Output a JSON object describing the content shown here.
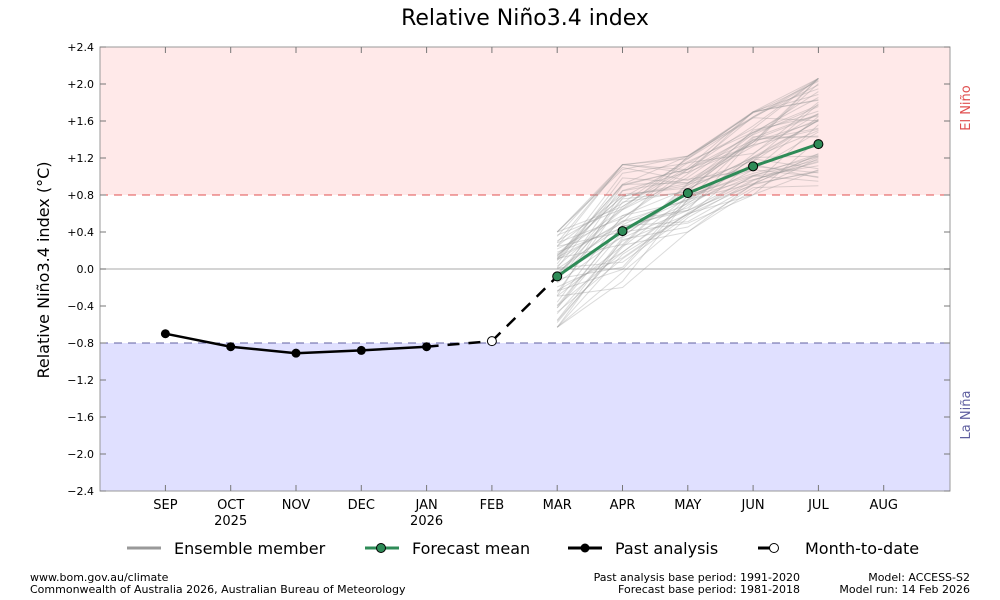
{
  "chart_data": {
    "type": "line",
    "title": "Relative Niño3.4 index",
    "ylabel": "Relative Niño3.4 index (°C)",
    "xlabel": "",
    "ylim": [
      -2.4,
      2.4
    ],
    "y_ticks": [
      {
        "value": 2.4,
        "label": "+2.4"
      },
      {
        "value": 2.0,
        "label": "+2.0"
      },
      {
        "value": 1.6,
        "label": "+1.6"
      },
      {
        "value": 1.2,
        "label": "+1.2"
      },
      {
        "value": 0.8,
        "label": "+0.8"
      },
      {
        "value": 0.4,
        "label": "+0.4"
      },
      {
        "value": 0.0,
        "label": "0.0"
      },
      {
        "value": -0.4,
        "label": "−0.4"
      },
      {
        "value": -0.8,
        "label": "−0.8"
      },
      {
        "value": -1.2,
        "label": "−1.2"
      },
      {
        "value": -1.6,
        "label": "−1.6"
      },
      {
        "value": -2.0,
        "label": "−2.0"
      },
      {
        "value": -2.4,
        "label": "−2.4"
      }
    ],
    "categories": [
      "SEP",
      "OCT",
      "NOV",
      "DEC",
      "JAN",
      "FEB",
      "MAR",
      "APR",
      "MAY",
      "JUN",
      "JUL",
      "AUG"
    ],
    "year_labels": [
      {
        "month": "OCT",
        "label": "2025"
      },
      {
        "month": "JAN",
        "label": "2026"
      }
    ],
    "thresholds": {
      "el_nino": 0.8,
      "la_nina": -0.8,
      "el_nino_label": "El Niño",
      "la_nina_label": "La Niña",
      "el_nino_color": "#e05050",
      "la_nina_color": "#6060a0",
      "el_nino_fill": "#ffe9e9",
      "la_nina_fill": "#e0e0ff"
    },
    "series": [
      {
        "name": "Past analysis",
        "color": "#000000",
        "x": [
          "SEP",
          "OCT",
          "NOV",
          "DEC",
          "JAN"
        ],
        "values": [
          -0.7,
          -0.84,
          -0.91,
          -0.88,
          -0.84
        ]
      },
      {
        "name": "Month-to-date",
        "color": "#000000",
        "x": [
          "JAN",
          "FEB"
        ],
        "values": [
          -0.84,
          -0.78
        ]
      },
      {
        "name": "Forecast mean",
        "color": "#2e8b57",
        "x": [
          "MAR",
          "APR",
          "MAY",
          "JUN",
          "JUL"
        ],
        "values": [
          -0.08,
          0.41,
          0.82,
          1.11,
          1.35
        ]
      }
    ],
    "connector": {
      "x": [
        "FEB",
        "MAR"
      ],
      "values": [
        -0.78,
        -0.08
      ]
    },
    "ensemble": {
      "name": "Ensemble member",
      "color": "#999999",
      "count": 60,
      "x": [
        "MAR",
        "APR",
        "MAY",
        "JUN",
        "JUL"
      ],
      "spread_min": [
        -0.63,
        -0.2,
        0.4,
        0.8,
        0.9
      ],
      "spread_max": [
        0.4,
        1.13,
        1.22,
        1.7,
        2.06
      ]
    },
    "legend": {
      "position": "bottom",
      "entries": [
        {
          "label": "Ensemble member",
          "style": "ensemble"
        },
        {
          "label": "Forecast mean",
          "style": "forecast"
        },
        {
          "label": "Past analysis",
          "style": "past"
        },
        {
          "label": "Month-to-date",
          "style": "mtd"
        }
      ]
    },
    "grid": false
  },
  "footer": {
    "left_line1": "www.bom.gov.au/climate",
    "left_line2": "Commonwealth of Australia 2026, Australian Bureau of Meteorology",
    "mid_line1": "Past analysis base period: 1991-2020",
    "mid_line2": "Forecast base period: 1981-2018",
    "right_line1": "Model: ACCESS-S2",
    "right_line2": "Model run: 14 Feb 2026"
  }
}
